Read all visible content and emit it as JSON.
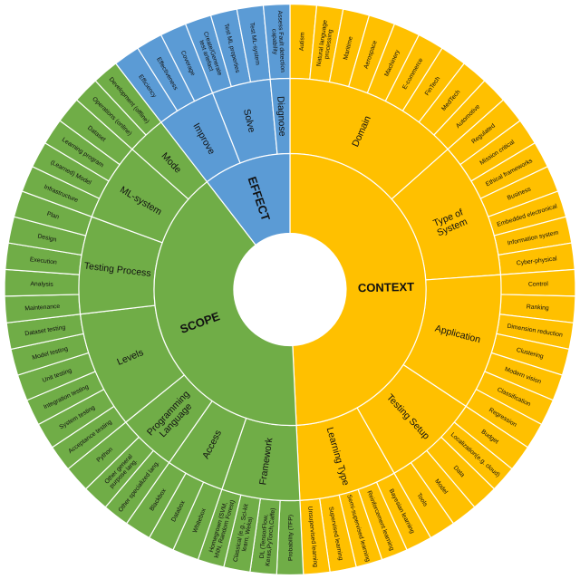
{
  "figure": {
    "background": "#ffffff"
  },
  "chart_data": {
    "type": "sunburst",
    "rings": [
      "root",
      "category",
      "leaf"
    ],
    "direction": "clockwise",
    "start_angle_deg": 0,
    "equal_leaf_angles": true,
    "sectors": [
      {
        "label": "CONTEXT",
        "color": "#FFC000",
        "children": [
          {
            "label": "Domain",
            "children": [
              "Autism",
              "Natural language\nprocessing",
              "Maritime",
              "Aerospace",
              "Machinery",
              "E-commerce",
              "FinTech",
              "MedTech",
              "Automotive"
            ]
          },
          {
            "label": "Type of\nSystem",
            "children": [
              "Regulated",
              "Mission critical",
              "Ethical frameworks",
              "Business",
              "Embedded electronical",
              "Information system",
              "Cyber-physical"
            ]
          },
          {
            "label": "Application",
            "children": [
              "Control",
              "Ranking",
              "Dimension reduction",
              "Clustering",
              "Modern vision",
              "Classification",
              "Regression"
            ]
          },
          {
            "label": "Testing Setup",
            "children": [
              "Budget",
              "Localization(e.g. cloud)",
              "Data",
              "Model",
              "Tools"
            ]
          },
          {
            "label": "Learning Type",
            "children": [
              "Bayesian learning",
              "Reinforcement learning",
              "Semi-supervised learning",
              "Supervised learning",
              "Unsupervised learning"
            ]
          }
        ]
      },
      {
        "label": "SCOPE",
        "color": "#70AD47",
        "children": [
          {
            "label": "Framework",
            "children": [
              "Probability (TFP)",
              "DL (TensorFlow,\nKeras,PyTorch,Caffe)",
              "Classical (e.g., Sci-kit\nlearn, Weka)",
              "Homegrown (SVM,\nkNN, Random Forest)"
            ]
          },
          {
            "label": "Access",
            "children": [
              "Whitebox",
              "Databox",
              "Blackbox"
            ]
          },
          {
            "label": "Programming\nLanguage",
            "children": [
              "Other specialized lang.",
              "Other general\npurpose lang.",
              "Python"
            ]
          },
          {
            "label": "Levels",
            "children": [
              "Acceptance testing",
              "System testing",
              "Integration testing",
              "Unit testing",
              "Model testing",
              "Dataset testing"
            ]
          },
          {
            "label": "Testing Process",
            "children": [
              "Maintenance",
              "Analysis",
              "Execution",
              "Design",
              "Plan"
            ]
          },
          {
            "label": "ML-system",
            "children": [
              "Infrastructure",
              "(Learned) Model",
              "Learning program",
              "Dataset"
            ]
          },
          {
            "label": "Mode",
            "children": [
              "Operations (online)",
              "Development (offline)"
            ]
          }
        ]
      },
      {
        "label": "EFFECT",
        "color": "#5B9BD5",
        "children": [
          {
            "label": "Improve",
            "children": [
              "Efficiency",
              "Effectiveness",
              "Coverage"
            ]
          },
          {
            "label": "Solve",
            "children": [
              "Create/Generate\ntest artefact",
              "Test ML properties",
              "Test ML-system"
            ]
          },
          {
            "label": "Diagnose",
            "children": [
              "Assess Fault detection\ncapability"
            ]
          }
        ]
      }
    ]
  }
}
